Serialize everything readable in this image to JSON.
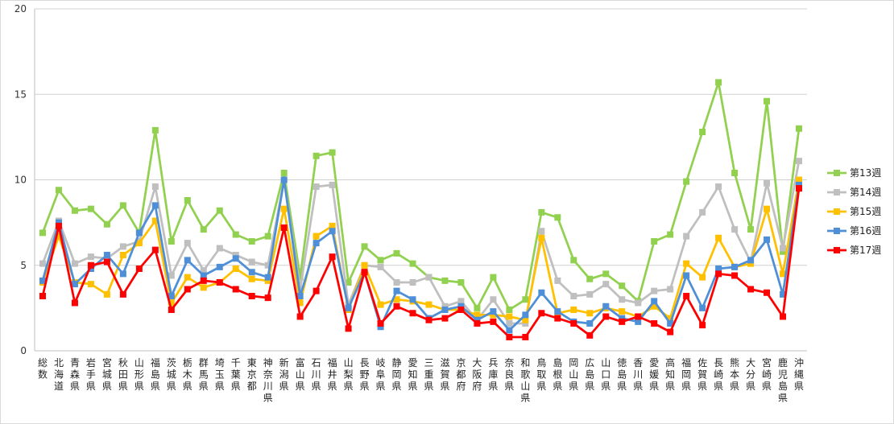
{
  "chart_data": {
    "type": "line",
    "title": "",
    "xlabel": "",
    "ylabel": "",
    "ylim": [
      0,
      20
    ],
    "yticks": [
      0,
      5,
      10,
      15,
      20
    ],
    "grid": "horizontal",
    "legend_position": "right",
    "categories": [
      "総数",
      "北海道",
      "青森県",
      "岩手県",
      "宮城県",
      "秋田県",
      "山形県",
      "福島県",
      "茨城県",
      "栃木県",
      "群馬県",
      "埼玉県",
      "千葉県",
      "東京都",
      "神奈川県",
      "新潟県",
      "富山県",
      "石川県",
      "福井県",
      "山梨県",
      "長野県",
      "岐阜県",
      "静岡県",
      "愛知県",
      "三重県",
      "滋賀県",
      "京都府",
      "大阪府",
      "兵庫県",
      "奈良県",
      "和歌山県",
      "鳥取県",
      "島根県",
      "岡山県",
      "広島県",
      "山口県",
      "徳島県",
      "香川県",
      "愛媛県",
      "高知県",
      "福岡県",
      "佐賀県",
      "長崎県",
      "熊本県",
      "大分県",
      "宮崎県",
      "鹿児島県",
      "沖縄県"
    ],
    "series": [
      {
        "name": "第13週",
        "color": "#92d050",
        "values": [
          6.9,
          9.4,
          8.2,
          8.3,
          7.4,
          8.5,
          6.9,
          12.9,
          6.4,
          8.8,
          7.1,
          8.2,
          6.8,
          6.4,
          6.7,
          10.4,
          4.3,
          11.4,
          11.6,
          4.0,
          6.1,
          5.3,
          5.7,
          5.1,
          4.3,
          4.1,
          4.0,
          2.5,
          4.3,
          2.4,
          3.0,
          8.1,
          7.8,
          5.3,
          4.2,
          4.5,
          3.8,
          2.9,
          6.4,
          6.8,
          9.9,
          12.8,
          15.7,
          10.4,
          7.1,
          14.6,
          5.8,
          13.0
        ]
      },
      {
        "name": "第14週",
        "color": "#bfbfbf",
        "values": [
          5.1,
          7.6,
          5.1,
          5.5,
          5.4,
          6.1,
          6.4,
          9.6,
          4.4,
          6.3,
          4.7,
          6.0,
          5.6,
          5.2,
          5.0,
          10.0,
          3.6,
          9.6,
          9.7,
          2.7,
          5.0,
          4.9,
          4.0,
          4.0,
          4.3,
          2.6,
          2.9,
          1.8,
          3.0,
          1.6,
          1.6,
          7.0,
          4.1,
          3.2,
          3.3,
          3.9,
          3.0,
          2.8,
          3.5,
          3.6,
          6.7,
          8.1,
          9.6,
          7.1,
          5.2,
          9.8,
          6.0,
          11.1
        ]
      },
      {
        "name": "第15週",
        "color": "#ffc000",
        "values": [
          4.0,
          6.7,
          4.0,
          3.9,
          3.3,
          5.6,
          6.3,
          7.6,
          2.8,
          4.3,
          3.7,
          4.0,
          4.8,
          4.2,
          4.1,
          8.3,
          2.8,
          6.7,
          7.3,
          2.4,
          5.0,
          2.7,
          3.0,
          2.9,
          2.7,
          2.4,
          2.4,
          2.1,
          2.1,
          2.0,
          1.8,
          6.6,
          2.2,
          2.4,
          2.2,
          2.5,
          2.3,
          2.0,
          2.6,
          1.9,
          5.1,
          4.3,
          6.6,
          4.9,
          5.1,
          8.3,
          4.5,
          10.0
        ]
      },
      {
        "name": "第16週",
        "color": "#4f8fd8",
        "values": [
          4.1,
          7.5,
          3.9,
          4.8,
          5.6,
          4.5,
          6.9,
          8.5,
          3.2,
          5.3,
          4.4,
          4.9,
          5.4,
          4.6,
          4.3,
          10.0,
          3.2,
          6.3,
          7.0,
          2.5,
          4.6,
          1.4,
          3.5,
          3.0,
          1.9,
          2.4,
          2.6,
          1.8,
          2.3,
          1.2,
          2.1,
          3.4,
          2.3,
          1.7,
          1.6,
          2.6,
          1.9,
          1.7,
          2.9,
          1.6,
          4.4,
          2.5,
          4.8,
          4.9,
          5.3,
          6.5,
          3.3,
          9.7
        ]
      },
      {
        "name": "第17週",
        "color": "#ff0000",
        "values": [
          3.2,
          7.3,
          2.8,
          5.0,
          5.2,
          3.3,
          4.8,
          5.9,
          2.4,
          3.6,
          4.1,
          4.0,
          3.6,
          3.2,
          3.1,
          7.2,
          2.0,
          3.5,
          5.5,
          1.3,
          4.6,
          1.6,
          2.6,
          2.2,
          1.8,
          1.9,
          2.4,
          1.6,
          1.7,
          0.8,
          0.8,
          2.2,
          1.9,
          1.6,
          0.9,
          2.0,
          1.7,
          2.0,
          1.6,
          1.1,
          3.2,
          1.5,
          4.5,
          4.4,
          3.6,
          3.4,
          2.0,
          9.5
        ]
      }
    ]
  }
}
